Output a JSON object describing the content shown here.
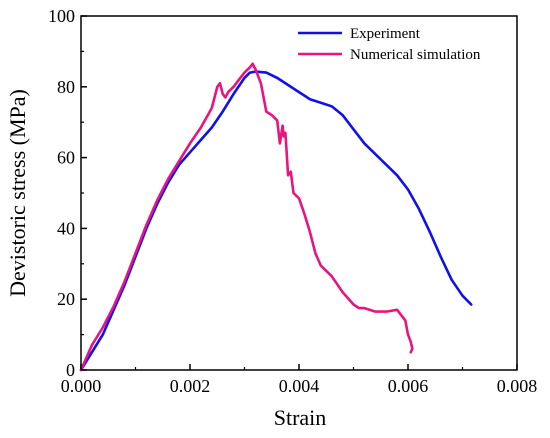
{
  "chart_data": {
    "type": "line",
    "title": "",
    "xlabel": "Strain",
    "ylabel": "Devistoric stress (MPa)",
    "xlim": [
      0,
      0.008
    ],
    "ylim": [
      0,
      100
    ],
    "xticks": [
      0,
      0.002,
      0.004,
      0.006,
      0.008
    ],
    "xtick_labels": [
      "0.000",
      "0.002",
      "0.004",
      "0.006",
      "0.008"
    ],
    "yticks": [
      0,
      20,
      40,
      60,
      80,
      100
    ],
    "ytick_labels": [
      "0",
      "20",
      "40",
      "60",
      "80",
      "100"
    ],
    "grid": false,
    "legend_position": "top-right",
    "series": [
      {
        "name": "Experiment",
        "color": "#1010ee",
        "x": [
          0,
          0.0002,
          0.0004,
          0.0006,
          0.0008,
          0.001,
          0.0012,
          0.0014,
          0.0016,
          0.0018,
          0.002,
          0.0022,
          0.0024,
          0.0026,
          0.0028,
          0.003,
          0.0031,
          0.0032,
          0.0034,
          0.0036,
          0.0038,
          0.004,
          0.0042,
          0.0044,
          0.0046,
          0.0048,
          0.005,
          0.0052,
          0.0054,
          0.0056,
          0.0058,
          0.006,
          0.0062,
          0.0064,
          0.0066,
          0.0068,
          0.007,
          0.00716
        ],
        "y": [
          0,
          5,
          10,
          17,
          24,
          32,
          40,
          47,
          53,
          58,
          61.5,
          65,
          68.5,
          73,
          78,
          82.5,
          84,
          84.3,
          84,
          82.5,
          80.5,
          78.5,
          76.5,
          75.5,
          74.5,
          72,
          68,
          64,
          61,
          58,
          55,
          51,
          45.5,
          39,
          32,
          25.5,
          21,
          18.5
        ]
      },
      {
        "name": "Numerical simulation",
        "color": "#e8157e",
        "x": [
          0,
          0.0002,
          0.0004,
          0.0006,
          0.0008,
          0.001,
          0.0012,
          0.0014,
          0.0016,
          0.0018,
          0.002,
          0.0022,
          0.0024,
          0.0025,
          0.00255,
          0.0026,
          0.00265,
          0.0027,
          0.0028,
          0.0029,
          0.003,
          0.0031,
          0.00315,
          0.0032,
          0.0033,
          0.0034,
          0.0035,
          0.0036,
          0.00365,
          0.0037,
          0.00372,
          0.00375,
          0.0038,
          0.00385,
          0.0039,
          0.004,
          0.0041,
          0.0042,
          0.0043,
          0.0044,
          0.0045,
          0.0046,
          0.0048,
          0.005,
          0.0051,
          0.0052,
          0.0054,
          0.0056,
          0.0058,
          0.00595,
          0.006,
          0.00605,
          0.00608,
          0.00605
        ],
        "y": [
          0,
          7,
          12,
          18,
          25,
          33,
          41,
          48,
          54,
          59,
          64,
          68.5,
          74,
          80,
          81,
          78,
          77,
          78.5,
          80,
          82,
          84,
          85.5,
          86.5,
          85,
          81,
          73,
          72,
          70.5,
          64,
          69,
          66,
          67,
          55,
          56,
          50,
          48.5,
          44,
          39,
          33,
          29.5,
          28,
          26.5,
          22,
          18.5,
          17.5,
          17.5,
          16.5,
          16.5,
          17,
          14,
          10,
          8,
          6,
          5
        ]
      }
    ]
  }
}
